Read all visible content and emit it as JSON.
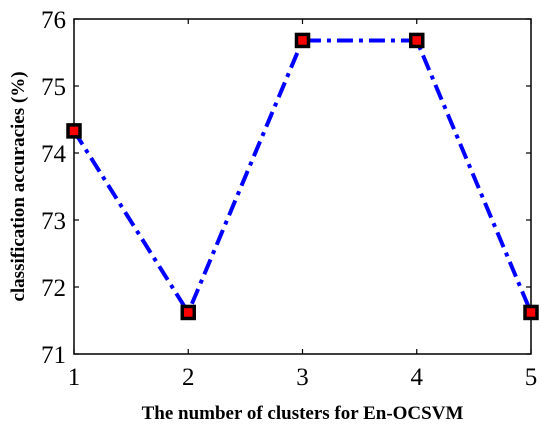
{
  "chart_data": {
    "type": "line",
    "title": "",
    "xlabel": "The number of clusters for En-OCSVM",
    "ylabel": "classification accuracies (%)",
    "x": [
      1,
      2,
      3,
      4,
      5
    ],
    "xlim": [
      1,
      5
    ],
    "ylim": [
      71,
      76
    ],
    "xticks": [
      "1",
      "2",
      "3",
      "4",
      "5"
    ],
    "yticks": [
      "71",
      "72",
      "73",
      "74",
      "75",
      "76"
    ],
    "grid": false,
    "legend": "none",
    "series": [
      {
        "values": [
          74.33,
          71.62,
          75.68,
          75.68,
          71.62
        ],
        "line_color": "#0000ff",
        "line_style": "dash-dot",
        "marker": "square",
        "marker_edge_color": "#000000",
        "marker_face_color": "#ff0000"
      }
    ]
  }
}
